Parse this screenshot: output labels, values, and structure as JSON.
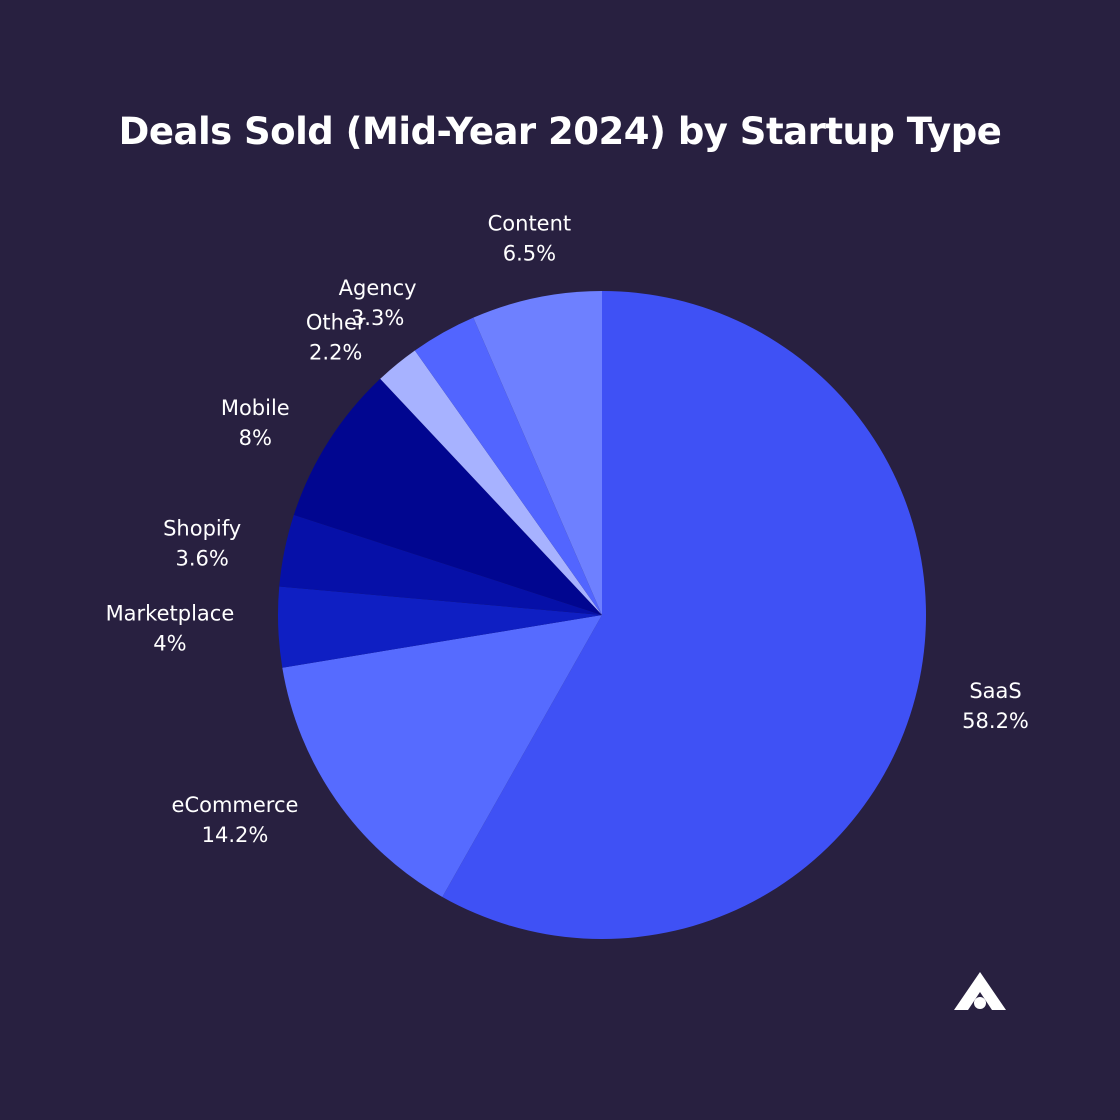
{
  "chart_data": {
    "type": "pie",
    "title": "Deals Sold (Mid-Year 2024) by Startup Type",
    "start_angle_deg": 0,
    "direction": "clockwise",
    "slices": [
      {
        "label": "SaaS",
        "value": 58.2,
        "value_label": "58.2%",
        "color": "#3f51f5"
      },
      {
        "label": "eCommerce",
        "value": 14.2,
        "value_label": "14.2%",
        "color": "#566bff"
      },
      {
        "label": "Marketplace",
        "value": 4.0,
        "value_label": "4%",
        "color": "#0f1fc3"
      },
      {
        "label": "Shopify",
        "value": 3.6,
        "value_label": "3.6%",
        "color": "#0610a8"
      },
      {
        "label": "Mobile",
        "value": 8.0,
        "value_label": "8%",
        "color": "#010690"
      },
      {
        "label": "Other",
        "value": 2.2,
        "value_label": "2.2%",
        "color": "#a7b2ff"
      },
      {
        "label": "Agency",
        "value": 3.3,
        "value_label": "3.3%",
        "color": "#5265ff"
      },
      {
        "label": "Content",
        "value": 6.5,
        "value_label": "6.5%",
        "color": "#6e80ff"
      }
    ]
  },
  "theme": {
    "background": "#282040",
    "text_color": "#ffffff"
  },
  "logo": {
    "icon": "brand-logo-icon"
  }
}
